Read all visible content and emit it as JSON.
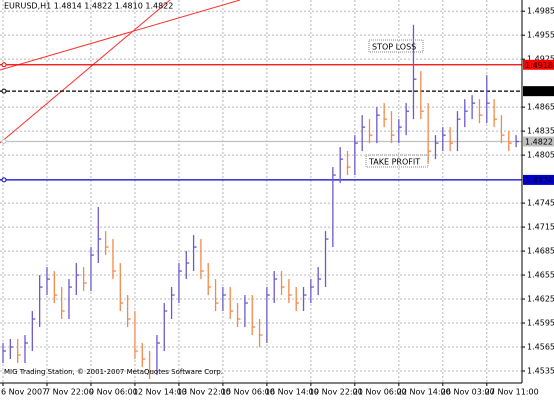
{
  "chart_data": {
    "type": "ohlc",
    "title": "EURUSD,H1 1.4814 1.4822 1.4810 1.4822",
    "footer": "MIG Trading Station, © 2001-2007 MetaQuotes Software Corp.",
    "annotations": [
      "STOP LOSS",
      "TAKE PROFIT"
    ],
    "up_color": "#6a5acd",
    "down_color": "#f4894a",
    "grid": true,
    "ylim": [
      1.452,
      1.4999
    ],
    "yticks": [
      1.4985,
      1.4955,
      1.4925,
      1.4865,
      1.4835,
      1.4805,
      1.4745,
      1.4715,
      1.4685,
      1.4655,
      1.4625,
      1.4595,
      1.4565,
      1.4535
    ],
    "levels": [
      {
        "value": 1.4918,
        "color": "#ff0000",
        "dashed": false
      },
      {
        "value": 1.4885,
        "color": "#000000",
        "dashed": true
      },
      {
        "value": 1.4822,
        "color": "#c0c0c0",
        "dashed": false
      },
      {
        "value": 1.4774,
        "color": "#0000cc",
        "dashed": false
      }
    ],
    "categories": [
      "6 Nov 2007",
      null,
      null,
      null,
      null,
      null,
      "7 Nov 22:00",
      null,
      null,
      null,
      null,
      null,
      "9 Nov 06:00",
      null,
      null,
      null,
      null,
      null,
      "12 Nov 14:00",
      null,
      null,
      null,
      null,
      null,
      "13 Nov 22:00",
      null,
      null,
      null,
      null,
      null,
      "15 Nov 06:00",
      null,
      null,
      null,
      null,
      null,
      "16 Nov 14:00",
      null,
      null,
      null,
      null,
      null,
      "19 Nov 22:00",
      null,
      null,
      null,
      null,
      null,
      "21 Nov 06:00",
      null,
      null,
      null,
      null,
      null,
      "22 Nov 14:00",
      null,
      null,
      null,
      null,
      null,
      "26 Nov 03:00",
      null,
      null,
      null,
      null,
      null,
      "27 Nov 11:00",
      null,
      null,
      null,
      null
    ],
    "high": [
      1.457,
      1.4575,
      1.4575,
      1.458,
      1.461,
      1.4655,
      1.4665,
      1.466,
      1.464,
      1.465,
      1.467,
      1.4665,
      1.469,
      1.474,
      1.471,
      1.47,
      1.467,
      1.463,
      1.461,
      1.457,
      1.456,
      1.458,
      1.462,
      1.464,
      1.467,
      1.4685,
      1.4705,
      1.47,
      1.467,
      1.465,
      1.464,
      1.464,
      1.462,
      1.463,
      1.463,
      1.46,
      1.464,
      1.466,
      1.466,
      1.465,
      1.464,
      1.464,
      1.465,
      1.4665,
      1.471,
      1.479,
      1.4815,
      1.481,
      1.483,
      1.4855,
      1.485,
      1.4865,
      1.487,
      1.486,
      1.485,
      1.487,
      1.4968,
      1.491,
      1.487,
      1.483,
      1.484,
      1.484,
      1.486,
      1.4875,
      1.488,
      1.4875,
      1.4905,
      1.4875,
      1.4855,
      1.4835,
      1.483
    ],
    "low": [
      1.4545,
      1.455,
      1.4545,
      1.4545,
      1.456,
      1.459,
      1.463,
      1.462,
      1.46,
      1.46,
      1.463,
      1.4635,
      1.4635,
      1.467,
      1.468,
      1.465,
      1.461,
      1.459,
      1.455,
      1.454,
      1.4525,
      1.453,
      1.456,
      1.46,
      1.462,
      1.465,
      1.466,
      1.465,
      1.463,
      1.461,
      1.461,
      1.46,
      1.459,
      1.459,
      1.458,
      1.4565,
      1.457,
      1.462,
      1.463,
      1.462,
      1.461,
      1.461,
      1.462,
      1.463,
      1.464,
      1.469,
      1.477,
      1.478,
      1.478,
      1.481,
      1.482,
      1.482,
      1.484,
      1.482,
      1.482,
      1.483,
      1.485,
      1.485,
      1.4795,
      1.48,
      1.481,
      1.481,
      1.481,
      1.484,
      1.485,
      1.4845,
      1.4845,
      1.484,
      1.482,
      1.481,
      1.4815
    ],
    "close": [
      1.456,
      1.4565,
      1.4555,
      1.457,
      1.46,
      1.464,
      1.465,
      1.463,
      1.461,
      1.464,
      1.4655,
      1.4645,
      1.468,
      1.47,
      1.469,
      1.466,
      1.462,
      1.46,
      1.456,
      1.455,
      1.4535,
      1.457,
      1.461,
      1.463,
      1.466,
      1.467,
      1.469,
      1.466,
      1.464,
      1.462,
      1.463,
      1.461,
      1.46,
      1.462,
      1.459,
      1.458,
      1.463,
      1.465,
      1.464,
      1.463,
      1.462,
      1.463,
      1.464,
      1.465,
      1.47,
      1.478,
      1.48,
      1.479,
      1.482,
      1.484,
      1.483,
      1.4855,
      1.485,
      1.483,
      1.484,
      1.486,
      1.49,
      1.486,
      1.481,
      1.482,
      1.483,
      1.482,
      1.485,
      1.486,
      1.487,
      1.4855,
      1.487,
      1.485,
      1.483,
      1.482,
      1.4822
    ]
  }
}
